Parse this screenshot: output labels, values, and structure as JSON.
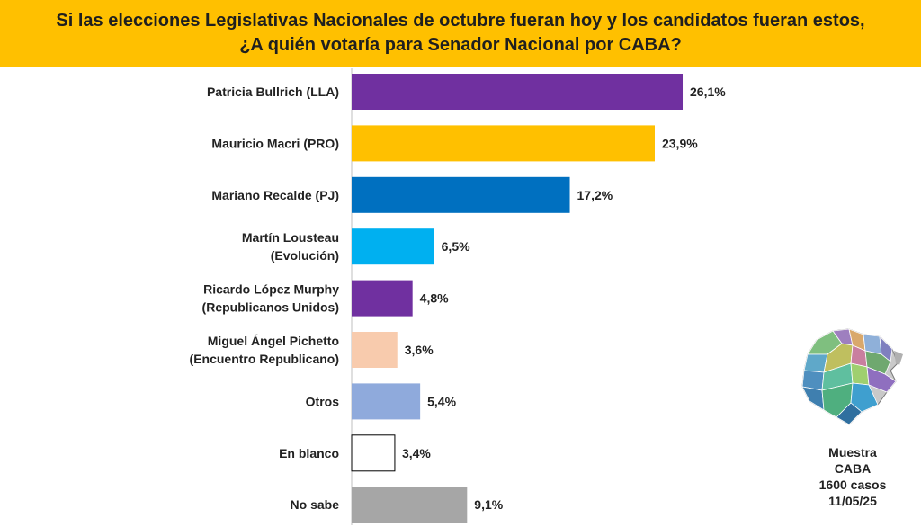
{
  "header": {
    "title_line1": "Si las elecciones Legislativas Nacionales de octubre fueran hoy y los candidatos fueran estos,",
    "title_line2": "¿A quién votaría para Senador Nacional por CABA?"
  },
  "sample": {
    "line1": "Muestra",
    "line2": "CABA",
    "line3": "1600 casos",
    "line4": "11/05/25"
  },
  "map": {
    "icon": "caba-map-icon"
  },
  "chart_data": {
    "type": "bar",
    "orientation": "horizontal",
    "categories": [
      [
        "Patricia Bullrich (LLA)"
      ],
      [
        "Mauricio Macri (PRO)"
      ],
      [
        "Mariano Recalde (PJ)"
      ],
      [
        "Martín Lousteau",
        "(Evolución)"
      ],
      [
        "Ricardo López Murphy",
        "(Republicanos Unidos)"
      ],
      [
        "Miguel Ángel Pichetto",
        "(Encuentro Republicano)"
      ],
      [
        "Otros"
      ],
      [
        "En blanco"
      ],
      [
        "No sabe"
      ]
    ],
    "values": [
      26.1,
      23.9,
      17.2,
      6.5,
      4.8,
      3.6,
      5.4,
      3.4,
      9.1
    ],
    "value_labels": [
      "26,1%",
      "23,9%",
      "17,2%",
      "6,5%",
      "4,8%",
      "3,6%",
      "5,4%",
      "3,4%",
      "9,1%"
    ],
    "colors": [
      "#7030a0",
      "#ffc000",
      "#0070c0",
      "#00b0f0",
      "#7030a0",
      "#f8cbad",
      "#8faadc",
      "#ffffff",
      "#a6a6a6"
    ],
    "grid": false,
    "legend": "none"
  }
}
